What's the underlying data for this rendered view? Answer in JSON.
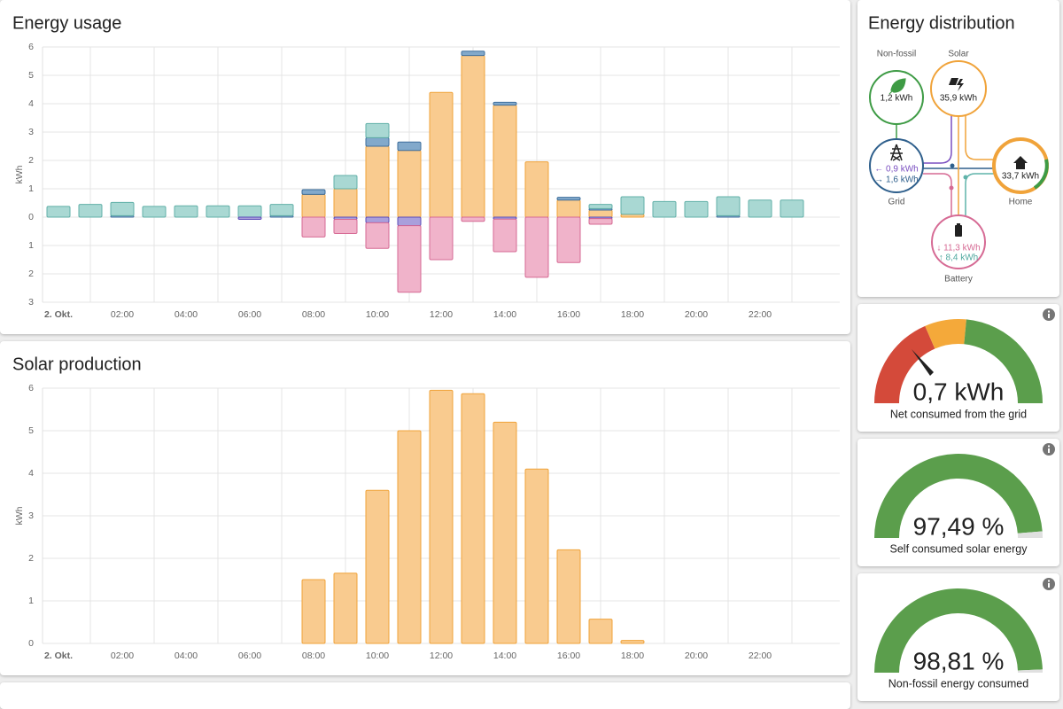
{
  "chart_data": [
    {
      "type": "bar",
      "stacked": true,
      "title": "Energy usage",
      "y_label": "kWh",
      "categories": [
        "2. Okt.",
        null,
        "02:00",
        null,
        "04:00",
        null,
        "06:00",
        null,
        "08:00",
        null,
        "10:00",
        null,
        "12:00",
        null,
        "14:00",
        null,
        "16:00",
        null,
        "18:00",
        null,
        "20:00",
        null,
        "22:00",
        null
      ],
      "series": [
        {
          "color": "#f9cb8f",
          "border_color": "#f0a33a",
          "values": [
            0,
            0,
            0,
            0,
            0,
            0,
            0,
            0,
            0.8,
            1.0,
            2.5,
            2.35,
            4.4,
            5.7,
            3.95,
            1.95,
            0.6,
            0.25,
            0.1,
            0,
            0,
            0,
            0,
            0
          ]
        },
        {
          "color": "#82a9cb",
          "border_color": "#3e6e9c",
          "values": [
            0,
            0,
            0.05,
            0,
            0,
            0,
            0,
            0.05,
            0.17,
            0,
            0.3,
            0.3,
            0,
            0.15,
            0.1,
            0,
            0.1,
            0.05,
            0,
            0,
            0,
            0.05,
            0,
            0
          ]
        },
        {
          "color": "#a9d8d3",
          "border_color": "#62b0a8",
          "values": [
            0.38,
            0.45,
            0.47,
            0.38,
            0.4,
            0.4,
            0.4,
            0.4,
            0,
            0.47,
            0.5,
            0,
            0,
            0,
            0,
            0,
            0,
            0.15,
            0.62,
            0.55,
            0.55,
            0.67,
            0.6,
            0.6
          ]
        },
        {
          "color": "#a99fdc",
          "border_color": "#5b4bb7",
          "values": [
            0,
            0,
            0,
            0,
            0,
            0,
            -0.08,
            0,
            0,
            -0.08,
            -0.2,
            -0.3,
            0,
            0,
            -0.07,
            0,
            0,
            -0.05,
            0,
            0,
            0,
            0,
            0,
            0
          ]
        },
        {
          "color": "#f0b3ca",
          "border_color": "#d66a94",
          "values": [
            0,
            0,
            0,
            0,
            0,
            0,
            0,
            0,
            -0.7,
            -0.5,
            -0.9,
            -2.35,
            -1.5,
            -0.15,
            -1.15,
            -2.12,
            -1.6,
            -0.2,
            0,
            0,
            0,
            0,
            0,
            0
          ]
        }
      ],
      "ylim": [
        -3,
        6
      ],
      "yticks": [
        {
          "value": -3,
          "label": "3"
        },
        {
          "value": -2,
          "label": "2"
        },
        {
          "value": -1,
          "label": "1"
        },
        0,
        1,
        2,
        3,
        4,
        5,
        6
      ],
      "grid": true
    },
    {
      "type": "bar",
      "stacked": true,
      "title": "Solar production",
      "y_label": "kWh",
      "categories": [
        "2. Okt.",
        null,
        "02:00",
        null,
        "04:00",
        null,
        "06:00",
        null,
        "08:00",
        null,
        "10:00",
        null,
        "12:00",
        null,
        "14:00",
        null,
        "16:00",
        null,
        "18:00",
        null,
        "20:00",
        null,
        "22:00",
        null
      ],
      "series": [
        {
          "color": "#f9cb8f",
          "border_color": "#f0a33a",
          "values": [
            0,
            0,
            0,
            0,
            0,
            0,
            0,
            0,
            1.5,
            1.65,
            3.6,
            5.0,
            5.95,
            5.87,
            5.2,
            4.1,
            2.2,
            0.57,
            0.07,
            0,
            0,
            0,
            0,
            0
          ]
        }
      ],
      "ylim": [
        0,
        6
      ],
      "yticks": [
        0,
        1,
        2,
        3,
        4,
        5,
        6
      ],
      "grid": true
    }
  ],
  "energy_distribution": {
    "title": "Energy distribution",
    "nodes": [
      {
        "label": "Non-fossil",
        "value": "1,2 kWh"
      },
      {
        "label": "Solar",
        "value": "35,9 kWh"
      },
      {
        "label": "Grid",
        "values": [
          "← 0,9 kWh",
          "→ 1,6 kWh"
        ]
      },
      {
        "label": "Home",
        "value": "33,7 kWh"
      },
      {
        "label": "Battery",
        "values": [
          "↓ 11,3 kWh",
          "↑ 8,4 kWh"
        ]
      }
    ]
  },
  "gauges": [
    {
      "value": "0,7 kWh",
      "label": "Net consumed from the grid"
    },
    {
      "value": "97,49 %",
      "label": "Self consumed solar energy"
    },
    {
      "value": "98,81 %",
      "label": "Non-fossil energy consumed"
    }
  ]
}
